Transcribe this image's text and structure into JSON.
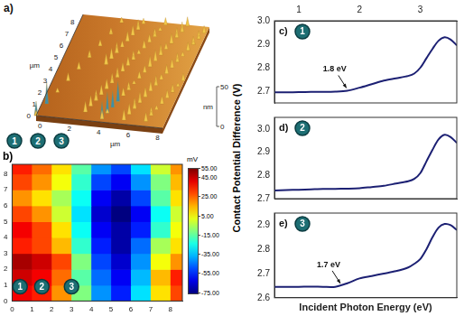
{
  "panels": {
    "a": {
      "type": "surface",
      "panel_label": "a)",
      "x_label": "µm",
      "y_label": "µm",
      "z_label": "nm",
      "xlim": [
        0,
        8.6
      ],
      "ylim": [
        0,
        8.6
      ],
      "zlim": [
        0,
        50
      ],
      "xticks": [
        0,
        2,
        4,
        6,
        8
      ],
      "yticks": [
        0,
        1,
        2,
        3,
        4,
        5,
        6,
        7,
        8
      ],
      "zticks": [
        0,
        50
      ],
      "sites": [
        "1",
        "2",
        "3"
      ]
    },
    "b": {
      "type": "heatmap",
      "panel_label": "b)",
      "xlim": [
        0,
        8.6
      ],
      "ylim": [
        0,
        8.6
      ],
      "xticks": [
        0,
        1,
        2,
        3,
        4,
        5,
        6,
        7,
        8
      ],
      "yticks": [
        0,
        1,
        2,
        3,
        4,
        5,
        6,
        7,
        8
      ],
      "cells": {
        "x": [
          0.5,
          1.5,
          2.5,
          3.5,
          4.5,
          5.5,
          6.5,
          7.5,
          8.5
        ],
        "y": [
          0.5,
          1.5,
          2.5,
          3.5,
          4.5,
          5.5,
          6.5,
          7.5,
          8.5
        ],
        "z": [
          [
            40,
            35,
            20,
            -10,
            -40,
            -55,
            -30,
            10,
            30
          ],
          [
            45,
            40,
            25,
            -15,
            -45,
            -60,
            -35,
            15,
            35
          ],
          [
            50,
            45,
            30,
            -10,
            -50,
            -65,
            -40,
            5,
            20
          ],
          [
            35,
            30,
            15,
            -20,
            -55,
            -70,
            -45,
            -5,
            10
          ],
          [
            40,
            30,
            10,
            -25,
            -60,
            -70,
            -55,
            -20,
            5
          ],
          [
            30,
            20,
            0,
            -30,
            -65,
            -75,
            -60,
            -25,
            0
          ],
          [
            20,
            10,
            -5,
            -25,
            -60,
            -70,
            -50,
            -15,
            10
          ],
          [
            30,
            20,
            5,
            -20,
            -50,
            -60,
            -40,
            -10,
            15
          ],
          [
            35,
            25,
            10,
            -15,
            -40,
            -50,
            -30,
            0,
            20
          ]
        ]
      },
      "colorbar": {
        "label": "mV",
        "range": [
          -75,
          55
        ],
        "ticks": [
          {
            "value": 55,
            "label": "55.00"
          },
          {
            "value": 45,
            "label": "45.00"
          },
          {
            "value": 25,
            "label": "25.00"
          },
          {
            "value": 5,
            "label": "5.00"
          },
          {
            "value": -15,
            "label": "-15.00"
          },
          {
            "value": -35,
            "label": "-35.00"
          },
          {
            "value": -55,
            "label": "-55.00"
          },
          {
            "value": -75,
            "label": "-75.00"
          }
        ]
      },
      "sites": [
        {
          "label": "1",
          "x": 0.4,
          "y": 0.9
        },
        {
          "label": "2",
          "x": 1.5,
          "y": 0.9
        },
        {
          "label": "3",
          "x": 3.0,
          "y": 0.9
        }
      ]
    }
  },
  "chart_data": [
    {
      "type": "line",
      "panel_label": "c)",
      "site": "1",
      "x": [
        0.6,
        0.8,
        1.0,
        1.2,
        1.4,
        1.6,
        1.8,
        2.0,
        2.2,
        2.4,
        2.6,
        2.8,
        2.9,
        3.0,
        3.1,
        3.2,
        3.3,
        3.4,
        3.5,
        3.6
      ],
      "values": [
        2.695,
        2.695,
        2.696,
        2.697,
        2.697,
        2.698,
        2.702,
        2.715,
        2.73,
        2.745,
        2.755,
        2.765,
        2.775,
        2.8,
        2.84,
        2.88,
        2.915,
        2.93,
        2.92,
        2.895
      ],
      "color": "#1c2073",
      "marker": "none",
      "line_style": "solid",
      "xlim": [
        0.6,
        3.6
      ],
      "xticks": [
        1,
        2,
        3
      ],
      "ylim": [
        2.65,
        3.0
      ],
      "yticks": [
        2.7,
        2.8,
        2.9,
        {
          "value": 3,
          "label": "3.0"
        }
      ],
      "grid": false,
      "annotations": [
        {
          "text": "1.8 eV",
          "x": 1.8,
          "y": 2.702
        }
      ]
    },
    {
      "type": "line",
      "panel_label": "d)",
      "site": "2",
      "y_label": "Contact Potential Difference (V)",
      "x": [
        0.6,
        0.8,
        1.0,
        1.2,
        1.4,
        1.6,
        1.8,
        2.0,
        2.2,
        2.4,
        2.6,
        2.8,
        2.9,
        3.0,
        3.1,
        3.2,
        3.3,
        3.4,
        3.5,
        3.6
      ],
      "values": [
        2.735,
        2.737,
        2.738,
        2.74,
        2.742,
        2.742,
        2.743,
        2.745,
        2.75,
        2.755,
        2.765,
        2.775,
        2.785,
        2.81,
        2.86,
        2.91,
        2.955,
        2.975,
        2.965,
        2.94
      ],
      "color": "#1c2073",
      "marker": "none",
      "line_style": "solid",
      "xlim": [
        0.6,
        3.6
      ],
      "xticks": [
        1,
        2,
        3
      ],
      "ylim": [
        2.7,
        3.05
      ],
      "yticks": [
        2.7,
        2.8,
        2.9,
        {
          "value": 3,
          "label": "3.0"
        }
      ],
      "grid": false,
      "tick_labels": "y"
    },
    {
      "type": "line",
      "panel_label": "e)",
      "site": "3",
      "x_label": "Incident Photon Energy (eV)",
      "x": [
        0.6,
        0.8,
        1.0,
        1.2,
        1.4,
        1.6,
        1.8,
        2.0,
        2.2,
        2.4,
        2.6,
        2.8,
        2.9,
        3.0,
        3.1,
        3.2,
        3.3,
        3.4,
        3.5,
        3.6
      ],
      "values": [
        2.645,
        2.645,
        2.645,
        2.646,
        2.645,
        2.645,
        2.66,
        2.68,
        2.69,
        2.7,
        2.71,
        2.725,
        2.74,
        2.76,
        2.8,
        2.85,
        2.89,
        2.905,
        2.9,
        2.88
      ],
      "color": "#1c2073",
      "marker": "none",
      "line_style": "solid",
      "xlim": [
        0.6,
        3.6
      ],
      "xticks": [
        1,
        2,
        3
      ],
      "ylim": [
        2.6,
        2.95
      ],
      "yticks": [
        2.6,
        2.7,
        2.8,
        2.9
      ],
      "grid": false,
      "tick_labels": "y",
      "annotations": [
        {
          "text": "1.7 eV",
          "x": 1.7,
          "y": 2.648
        }
      ]
    }
  ]
}
